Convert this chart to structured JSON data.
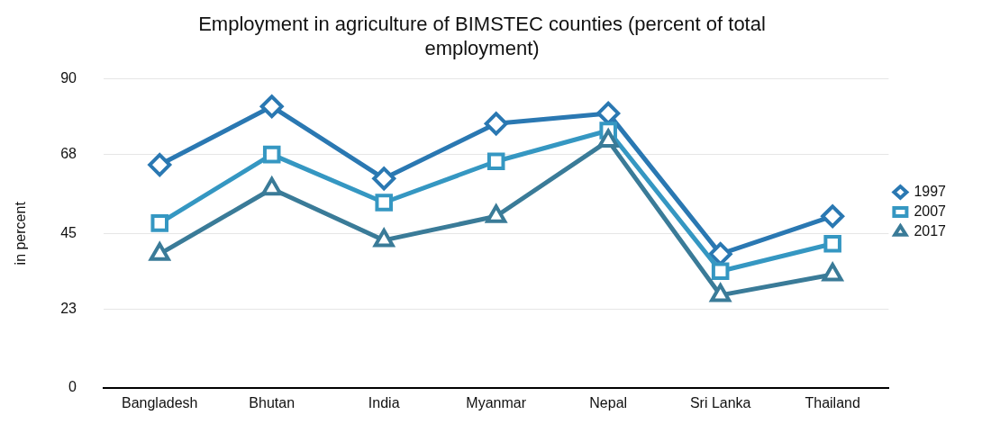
{
  "chart_data": {
    "type": "line",
    "title": "Employment in agriculture of BIMSTEC counties (percent of total employment)",
    "ylabel": "in percent",
    "categories": [
      "Bangladesh",
      "Bhutan",
      "India",
      "Myanmar",
      "Nepal",
      "Sri Lanka",
      "Thailand"
    ],
    "series": [
      {
        "name": "1997",
        "color": "#2a78b2",
        "marker": "diamond",
        "values": [
          65,
          82,
          61,
          77,
          80,
          39,
          50
        ]
      },
      {
        "name": "2007",
        "color": "#3597c2",
        "marker": "square",
        "values": [
          48,
          68,
          54,
          66,
          75,
          34,
          42
        ]
      },
      {
        "name": "2017",
        "color": "#3a7b98",
        "marker": "triangle",
        "values": [
          39,
          58,
          43,
          50,
          72,
          27,
          33
        ]
      }
    ],
    "ylim": [
      0,
      90
    ],
    "yticks": [
      0,
      23,
      45,
      68,
      90
    ],
    "grid": "y",
    "legend": "right",
    "line_style": "solid"
  }
}
